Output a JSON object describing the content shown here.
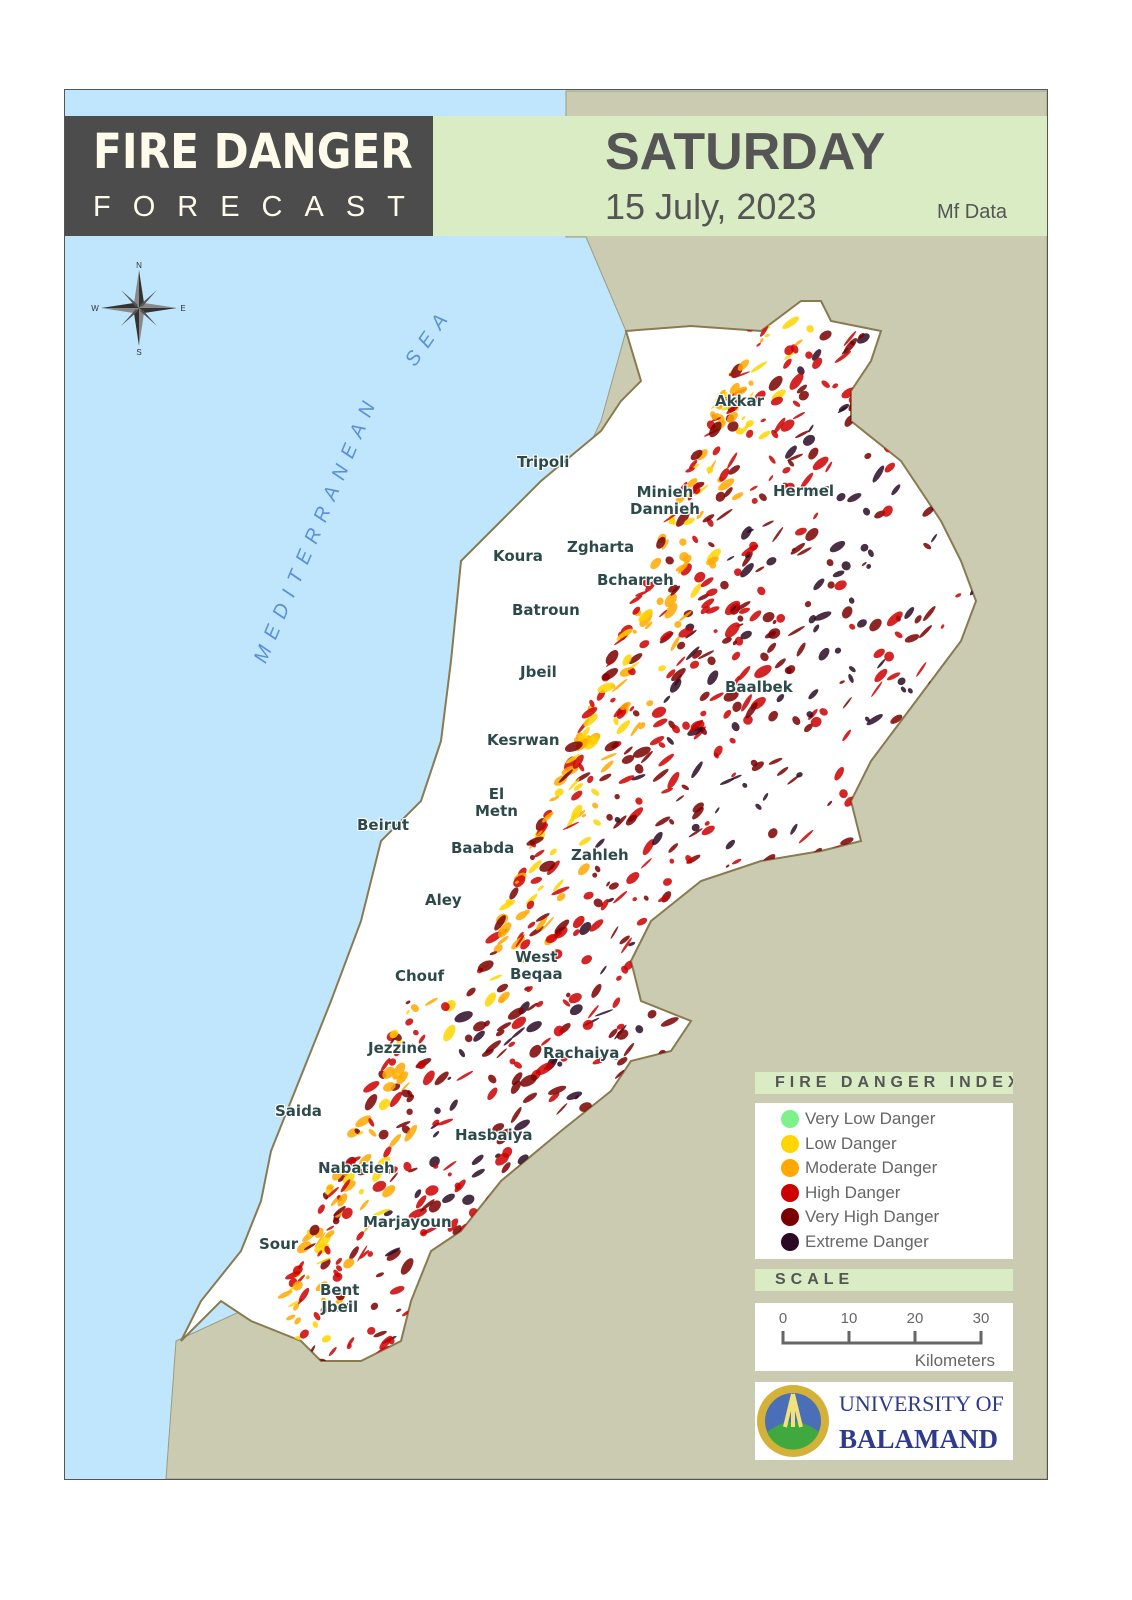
{
  "header": {
    "title_line1": "FIRE DANGER",
    "title_line2": "FORECAST",
    "day": "SATURDAY",
    "date": "15 July, 2023",
    "source": "Mf Data"
  },
  "map": {
    "sea_label_1": "MEDITERRANEAN",
    "sea_label_2": "SEA",
    "compass": {
      "n": "N",
      "s": "S",
      "e": "E",
      "w": "W"
    },
    "colors": {
      "sea": "#bfe6fc",
      "land_outside": "#cbcbb1",
      "land": "#ffffff"
    },
    "places": [
      "Akkar",
      "Tripoli",
      "Hermel",
      "Minieh Dannieh",
      "Koura",
      "Zgharta",
      "Bcharreh",
      "Batroun",
      "Jbeil",
      "Baalbek",
      "Kesrwan",
      "El Metn",
      "Beirut",
      "Baabda",
      "Zahleh",
      "Aley",
      "West Beqaa",
      "Chouf",
      "Jezzine",
      "Rachaiya",
      "Saida",
      "Hasbaiya",
      "Nabatieh",
      "Marjayoun",
      "Sour",
      "Bent Jbeil"
    ]
  },
  "legend": {
    "title": "FIRE DANGER INDEX",
    "items": [
      {
        "label": "Very Low Danger",
        "color": "#7ef28a"
      },
      {
        "label": "Low Danger",
        "color": "#ffd500"
      },
      {
        "label": "Moderate Danger",
        "color": "#ffa800"
      },
      {
        "label": "High Danger",
        "color": "#cc0000"
      },
      {
        "label": "Very High Danger",
        "color": "#7a0000"
      },
      {
        "label": "Extreme Danger",
        "color": "#2a0a24"
      }
    ]
  },
  "scale": {
    "title": "SCALE",
    "ticks": [
      "0",
      "10",
      "20",
      "30"
    ],
    "unit": "Kilometers"
  },
  "logo": {
    "line1": "UNIVERSITY OF",
    "line2": "BALAMAND"
  }
}
